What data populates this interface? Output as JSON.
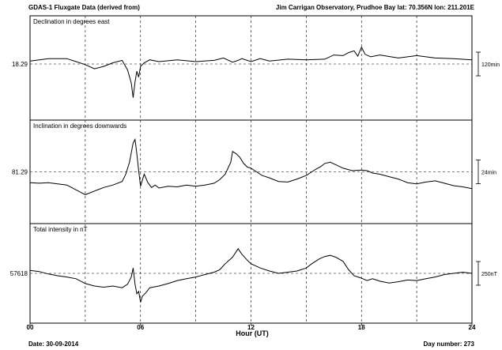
{
  "header": {
    "left_title": "GDAS-1 Fluxgate Data (derived from)",
    "right_title": "Jim Carrigan Observatory, Prudhoe Bay  lat: 70.356N lon: 211.201E"
  },
  "footer": {
    "date_label": "Date: 30-09-2014",
    "day_number_label": "Day number:  273"
  },
  "chart_data": {
    "type": "line",
    "xlabel": "Hour (UT)",
    "x_ticks": [
      "00",
      "06",
      "12",
      "18",
      "24"
    ],
    "xlim": [
      0,
      24
    ],
    "grid": true,
    "panels": [
      {
        "title": "Declination in degrees east",
        "center_label": "18.29",
        "scale_label": "120min",
        "x": [
          0,
          1,
          2,
          2.5,
          3,
          3.5,
          4,
          4.5,
          5,
          5.3,
          5.5,
          5.6,
          5.7,
          5.8,
          5.9,
          6,
          6.2,
          6.5,
          7,
          8,
          9,
          10,
          10.5,
          11,
          11.3,
          11.5,
          12,
          12.5,
          13,
          14,
          15,
          16,
          16.5,
          17,
          17.3,
          17.6,
          17.8,
          18,
          18.2,
          18.5,
          19,
          20,
          21,
          22,
          23,
          24
        ],
        "y": [
          0.5,
          0.9,
          0.9,
          0.4,
          -0.1,
          -0.8,
          -0.4,
          0.2,
          0.6,
          -1.0,
          -3.2,
          -5.6,
          -3.0,
          -1.2,
          -2.2,
          -0.4,
          0.2,
          0.7,
          0.4,
          0.7,
          0.4,
          0.6,
          1.0,
          0.3,
          0.6,
          0.9,
          0.4,
          0.9,
          0.5,
          0.8,
          0.7,
          0.8,
          1.5,
          1.4,
          1.9,
          2.2,
          1.3,
          2.8,
          1.6,
          1.2,
          1.5,
          1.0,
          1.4,
          1.0,
          0.9,
          0.7
        ]
      },
      {
        "title": "Inclination in degrees downwards",
        "center_label": "81.29",
        "scale_label": "24min",
        "x": [
          0,
          0.5,
          1,
          1.5,
          2,
          2.5,
          3,
          3.5,
          4,
          4.5,
          5,
          5.2,
          5.4,
          5.5,
          5.6,
          5.7,
          5.8,
          5.9,
          6,
          6.2,
          6.4,
          6.6,
          6.8,
          7,
          7.5,
          8,
          8.5,
          9,
          9.5,
          10,
          10.3,
          10.6,
          10.9,
          11,
          11.2,
          11.4,
          11.6,
          11.8,
          12,
          12.3,
          12.6,
          13,
          13.5,
          14,
          14.5,
          15,
          15.5,
          15.8,
          16,
          16.3,
          16.6,
          17,
          17.5,
          18,
          18.3,
          18.6,
          19,
          19.5,
          20,
          20.5,
          21,
          21.5,
          22,
          22.5,
          23,
          23.5,
          24
        ],
        "y": [
          -1.8,
          -1.9,
          -1.8,
          -2.0,
          -2.2,
          -3.0,
          -3.8,
          -3.2,
          -2.6,
          -2.2,
          -1.6,
          -0.4,
          1.6,
          3.2,
          4.8,
          5.4,
          3.0,
          0.2,
          -2.4,
          -0.4,
          -1.8,
          -2.6,
          -2.2,
          -2.7,
          -2.4,
          -2.5,
          -2.2,
          -2.4,
          -2.2,
          -1.9,
          -1.3,
          -0.4,
          1.6,
          3.4,
          3.0,
          2.4,
          1.4,
          0.8,
          0.6,
          0.0,
          -0.6,
          -1.0,
          -1.6,
          -1.7,
          -1.2,
          -0.6,
          0.4,
          0.9,
          1.4,
          1.6,
          1.2,
          0.6,
          0.2,
          0.3,
          0.2,
          -0.2,
          -0.4,
          -0.8,
          -1.2,
          -1.8,
          -2.0,
          -1.7,
          -1.5,
          -1.9,
          -2.3,
          -2.5,
          -2.8
        ]
      },
      {
        "title": "Total intensity in nT",
        "center_label": "57618",
        "scale_label": "250nT",
        "x": [
          0,
          0.5,
          1,
          1.5,
          2,
          2.5,
          3,
          3.5,
          4,
          4.5,
          5,
          5.3,
          5.5,
          5.6,
          5.7,
          5.8,
          5.9,
          6,
          6.1,
          6.3,
          6.5,
          7,
          7.5,
          8,
          8.5,
          9,
          9.5,
          10,
          10.3,
          10.6,
          11,
          11.3,
          11.5,
          11.8,
          12,
          12.5,
          13,
          13.5,
          14,
          14.5,
          15,
          15.3,
          15.7,
          16,
          16.3,
          16.6,
          17,
          17.3,
          17.6,
          18,
          18.3,
          18.6,
          19,
          19.5,
          20,
          20.5,
          21,
          21.5,
          22,
          22.5,
          23,
          23.5,
          24
        ],
        "y": [
          0.5,
          0.3,
          -0.1,
          -0.4,
          -0.6,
          -0.9,
          -1.7,
          -2.1,
          -2.3,
          -2.1,
          -2.4,
          -1.8,
          -0.6,
          0.9,
          -1.8,
          -3.4,
          -3.0,
          -4.8,
          -3.8,
          -3.2,
          -2.4,
          -2.1,
          -1.7,
          -1.2,
          -0.9,
          -0.6,
          -0.2,
          0.2,
          0.6,
          1.6,
          2.7,
          4.1,
          3.2,
          2.2,
          1.6,
          0.9,
          0.4,
          0.0,
          0.2,
          0.4,
          0.9,
          1.6,
          2.4,
          2.8,
          3.0,
          2.7,
          2.0,
          0.6,
          -0.4,
          -0.8,
          -1.2,
          -0.9,
          -1.3,
          -1.6,
          -1.4,
          -1.1,
          -1.2,
          -0.9,
          -0.6,
          -0.2,
          0.0,
          0.2,
          0.0
        ]
      }
    ]
  }
}
